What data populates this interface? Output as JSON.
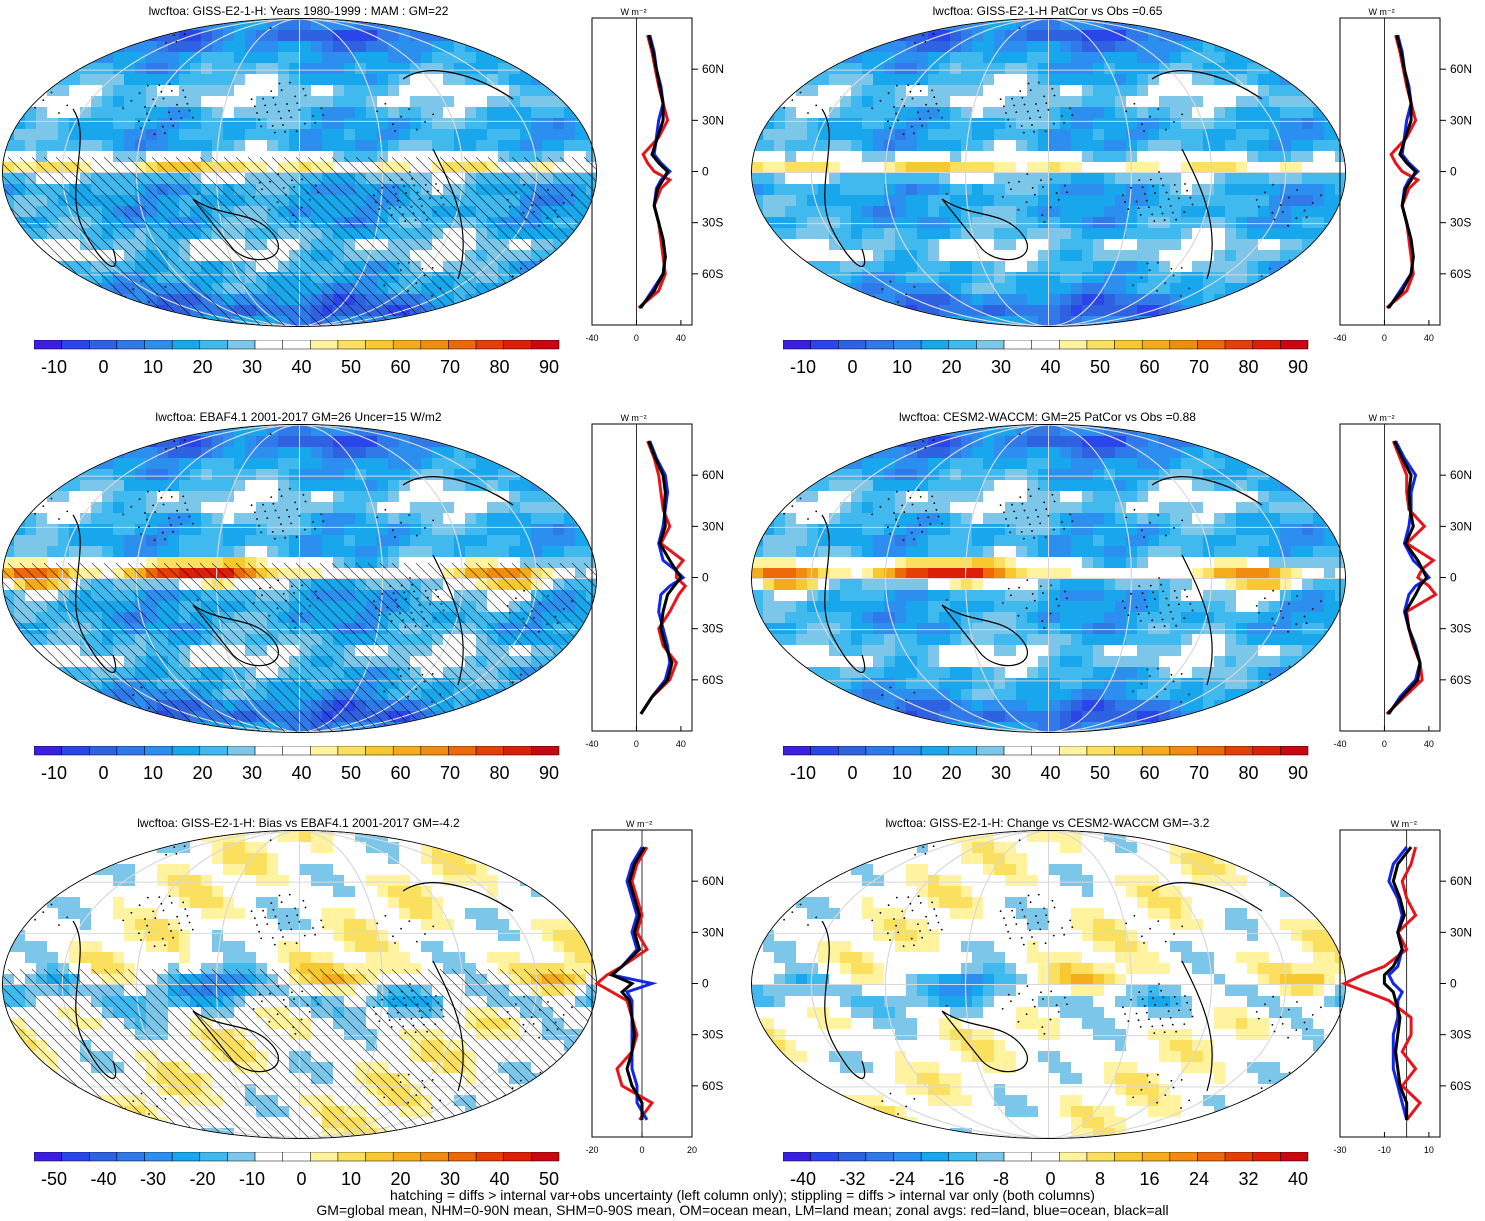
{
  "panels": [
    {
      "title": "lwcftoa: GISS-E2-1-H: Years 1980-1999 : MAM : GM=22",
      "kind": "field",
      "zonal_unit": "W m⁻²",
      "zonal_ticks": [
        "-40",
        "0",
        "40"
      ],
      "lat_labels": [
        "60N",
        "30N",
        "0",
        "30S",
        "60S"
      ],
      "colorbar_labels": [
        "-10",
        "0",
        "10",
        "20",
        "30",
        "40",
        "50",
        "60",
        "70",
        "80",
        "90"
      ]
    },
    {
      "title": "lwcftoa: GISS-E2-1-H PatCor vs Obs =0.65",
      "kind": "field",
      "zonal_unit": "W m⁻²",
      "zonal_ticks": [
        "-40",
        "0",
        "40"
      ],
      "lat_labels": [
        "60N",
        "30N",
        "0",
        "30S",
        "60S"
      ],
      "colorbar_labels": [
        "-10",
        "0",
        "10",
        "20",
        "30",
        "40",
        "50",
        "60",
        "70",
        "80",
        "90"
      ]
    },
    {
      "title": "lwcftoa: EBAF4.1 2001-2017 GM=26 Uncer=15 W/m2",
      "kind": "obs",
      "zonal_unit": "W m⁻²",
      "zonal_ticks": [
        "-40",
        "0",
        "40"
      ],
      "lat_labels": [
        "60N",
        "30N",
        "0",
        "30S",
        "60S"
      ],
      "colorbar_labels": [
        "-10",
        "0",
        "10",
        "20",
        "30",
        "40",
        "50",
        "60",
        "70",
        "80",
        "90"
      ]
    },
    {
      "title": "lwcftoa: CESM2-WACCM: GM=25 PatCor vs Obs =0.88",
      "kind": "field2",
      "zonal_unit": "W m⁻²",
      "zonal_ticks": [
        "-40",
        "0",
        "40"
      ],
      "lat_labels": [
        "60N",
        "30N",
        "0",
        "30S",
        "60S"
      ],
      "colorbar_labels": [
        "-10",
        "0",
        "10",
        "20",
        "30",
        "40",
        "50",
        "60",
        "70",
        "80",
        "90"
      ]
    },
    {
      "title": "lwcftoa: GISS-E2-1-H: Bias vs EBAF4.1 2001-2017 GM=-4.2",
      "kind": "bias",
      "zonal_unit": "W m⁻²",
      "zonal_ticks": [
        "-20",
        "0",
        "20"
      ],
      "lat_labels": [
        "60N",
        "30N",
        "0",
        "30S",
        "60S"
      ],
      "colorbar_labels": [
        "-50",
        "-40",
        "-30",
        "-20",
        "-10",
        "0",
        "10",
        "20",
        "30",
        "40",
        "50"
      ]
    },
    {
      "title": "lwcftoa: GISS-E2-1-H: Change vs CESM2-WACCM GM=-3.2",
      "kind": "change",
      "zonal_unit": "W m⁻²",
      "zonal_ticks": [
        "-30",
        "-10",
        "10"
      ],
      "lat_labels": [
        "60N",
        "30N",
        "0",
        "30S",
        "60S"
      ],
      "colorbar_labels": [
        "-40",
        "-32",
        "-24",
        "-16",
        "-8",
        "0",
        "8",
        "16",
        "24",
        "32",
        "40"
      ]
    }
  ],
  "footer": {
    "line1": "hatching = diffs > internal var+obs uncertainty (left column only); stippling = diffs > internal var only (both columns)",
    "line2": "GM=global mean, NHM=0-90N mean, SHM=0-90S mean, OM=ocean mean, LM=land mean; zonal avgs: red=land, blue=ocean, black=all"
  },
  "colors": {
    "field_scale": [
      "#3a1fe0",
      "#2a45ea",
      "#2f62e0",
      "#3079e8",
      "#2c8ff0",
      "#18a7ec",
      "#40b9ef",
      "#7cc6ea",
      "#ffffff",
      "#ffffff",
      "#fff3a0",
      "#fbe060",
      "#f7c830",
      "#f4ac1c",
      "#f08c10",
      "#ec6808",
      "#e44004",
      "#dc2008",
      "#c80810"
    ],
    "diff_scale": [
      "#3a1fe0",
      "#2a45ea",
      "#2f62e0",
      "#3079e8",
      "#2c8ff0",
      "#18a7ec",
      "#40b9ef",
      "#7cc6ea",
      "#ffffff",
      "#ffffff",
      "#fff3a0",
      "#fbe060",
      "#f7c830",
      "#f4ac1c",
      "#f08c10",
      "#ec6808",
      "#e44004",
      "#dc2008",
      "#c80810"
    ],
    "land": "#e8141c",
    "ocean": "#1226e8",
    "all": "#000000"
  },
  "chart_data": [
    {
      "type": "line",
      "title": "lwcftoa: GISS-E2-1-H: Years 1980-1999 : MAM : GM=22",
      "xlabel": "W m⁻²",
      "xlim": [
        -40,
        50
      ],
      "lat": [
        80,
        70,
        60,
        50,
        40,
        30,
        20,
        10,
        5,
        0,
        -5,
        -10,
        -20,
        -30,
        -40,
        -50,
        -60,
        -70,
        -80
      ],
      "series": [
        {
          "name": "land",
          "values": [
            10,
            14,
            17,
            20,
            24,
            28,
            20,
            6,
            10,
            16,
            30,
            22,
            16,
            20,
            22,
            24,
            26,
            20,
            2
          ]
        },
        {
          "name": "ocean",
          "values": [
            12,
            16,
            18,
            22,
            24,
            20,
            18,
            16,
            22,
            30,
            22,
            18,
            16,
            20,
            24,
            26,
            24,
            14,
            4
          ]
        },
        {
          "name": "all",
          "values": [
            11,
            15,
            18,
            21,
            24,
            24,
            19,
            14,
            20,
            28,
            24,
            19,
            16,
            20,
            24,
            26,
            24,
            16,
            3
          ]
        }
      ]
    },
    {
      "type": "line",
      "title": "lwcftoa: GISS-E2-1-H PatCor vs Obs =0.65",
      "xlabel": "W m⁻²",
      "xlim": [
        -40,
        50
      ],
      "lat": [
        80,
        70,
        60,
        50,
        40,
        30,
        20,
        10,
        5,
        0,
        -5,
        -10,
        -20,
        -30,
        -40,
        -50,
        -60,
        -70,
        -80
      ],
      "series": [
        {
          "name": "land",
          "values": [
            10,
            14,
            17,
            20,
            24,
            28,
            20,
            6,
            10,
            16,
            30,
            22,
            16,
            20,
            22,
            24,
            26,
            20,
            2
          ]
        },
        {
          "name": "ocean",
          "values": [
            12,
            16,
            18,
            22,
            24,
            20,
            18,
            16,
            22,
            30,
            22,
            18,
            16,
            20,
            24,
            26,
            24,
            14,
            4
          ]
        },
        {
          "name": "all",
          "values": [
            11,
            15,
            18,
            21,
            24,
            24,
            19,
            14,
            20,
            28,
            24,
            19,
            16,
            20,
            24,
            26,
            24,
            16,
            3
          ]
        }
      ]
    },
    {
      "type": "line",
      "title": "lwcftoa: EBAF4.1 2001-2017 GM=26 Uncer=15 W/m2",
      "xlabel": "W m⁻²",
      "xlim": [
        -40,
        50
      ],
      "lat": [
        80,
        70,
        60,
        50,
        40,
        30,
        20,
        10,
        5,
        0,
        -5,
        -10,
        -20,
        -30,
        -40,
        -50,
        -60,
        -70,
        -80
      ],
      "series": [
        {
          "name": "land",
          "values": [
            10,
            16,
            20,
            22,
            24,
            30,
            22,
            42,
            36,
            36,
            44,
            38,
            30,
            20,
            24,
            36,
            30,
            14,
            4
          ]
        },
        {
          "name": "ocean",
          "values": [
            12,
            18,
            26,
            28,
            26,
            24,
            20,
            24,
            34,
            42,
            30,
            22,
            20,
            24,
            28,
            30,
            26,
            14,
            4
          ]
        },
        {
          "name": "all",
          "values": [
            11,
            17,
            24,
            26,
            25,
            26,
            21,
            30,
            35,
            40,
            34,
            28,
            24,
            22,
            26,
            32,
            28,
            14,
            4
          ]
        }
      ]
    },
    {
      "type": "line",
      "title": "lwcftoa: CESM2-WACCM: GM=25 PatCor vs Obs =0.88",
      "xlabel": "W m⁻²",
      "xlim": [
        -40,
        50
      ],
      "lat": [
        80,
        70,
        60,
        50,
        40,
        30,
        20,
        10,
        5,
        0,
        -5,
        -10,
        -20,
        -30,
        -40,
        -50,
        -60,
        -70,
        -80
      ],
      "series": [
        {
          "name": "land",
          "values": [
            8,
            14,
            20,
            20,
            22,
            36,
            20,
            44,
            34,
            30,
            40,
            46,
            20,
            22,
            26,
            32,
            34,
            18,
            2
          ]
        },
        {
          "name": "ocean",
          "values": [
            10,
            18,
            28,
            24,
            24,
            22,
            18,
            26,
            34,
            40,
            28,
            22,
            18,
            22,
            28,
            32,
            28,
            14,
            4
          ]
        },
        {
          "name": "all",
          "values": [
            9,
            16,
            24,
            22,
            23,
            26,
            19,
            30,
            34,
            38,
            32,
            28,
            19,
            22,
            27,
            32,
            30,
            16,
            3
          ]
        }
      ]
    },
    {
      "type": "line",
      "title": "lwcftoa: GISS-E2-1-H: Bias vs EBAF4.1 2001-2017 GM=-4.2",
      "xlabel": "W m⁻²",
      "xlim": [
        -20,
        20
      ],
      "lat": [
        80,
        70,
        60,
        50,
        40,
        30,
        20,
        10,
        5,
        0,
        -5,
        -10,
        -20,
        -30,
        -40,
        -50,
        -60,
        -70,
        -80
      ],
      "series": [
        {
          "name": "land",
          "values": [
            2,
            -2,
            -4,
            -2,
            0,
            -2,
            2,
            -8,
            -14,
            -18,
            -12,
            -6,
            -4,
            -2,
            -4,
            -10,
            -8,
            4,
            -1
          ]
        },
        {
          "name": "ocean",
          "values": [
            0,
            -4,
            -6,
            -4,
            -2,
            -4,
            -2,
            -8,
            -12,
            4,
            -6,
            -4,
            -4,
            -4,
            -4,
            -4,
            -2,
            -2,
            2
          ]
        },
        {
          "name": "all",
          "values": [
            1,
            -3,
            -5,
            -3,
            -1,
            -3,
            -1,
            -8,
            -12,
            -4,
            -8,
            -5,
            -4,
            -3,
            -4,
            -6,
            -4,
            0,
            0
          ]
        }
      ]
    },
    {
      "type": "line",
      "title": "lwcftoa: GISS-E2-1-H: Change vs CESM2-WACCM GM=-3.2",
      "xlabel": "W m⁻²",
      "xlim": [
        -30,
        15
      ],
      "lat": [
        80,
        70,
        60,
        50,
        40,
        30,
        20,
        10,
        5,
        0,
        -5,
        -10,
        -20,
        -30,
        -40,
        -50,
        -60,
        -70,
        -80
      ],
      "series": [
        {
          "name": "land",
          "values": [
            4,
            2,
            -2,
            0,
            4,
            -4,
            0,
            -10,
            -20,
            -28,
            -18,
            -8,
            2,
            2,
            -2,
            4,
            -2,
            6,
            0
          ]
        },
        {
          "name": "ocean",
          "values": [
            0,
            -6,
            -8,
            -4,
            -2,
            -4,
            -2,
            -4,
            -8,
            -6,
            -2,
            -4,
            -4,
            -6,
            -6,
            -6,
            -4,
            -2,
            0
          ]
        },
        {
          "name": "all",
          "values": [
            2,
            -4,
            -6,
            -3,
            -1,
            -4,
            -2,
            -6,
            -10,
            -10,
            -6,
            -5,
            -3,
            -4,
            -5,
            -4,
            -3,
            0,
            0
          ]
        }
      ]
    }
  ]
}
